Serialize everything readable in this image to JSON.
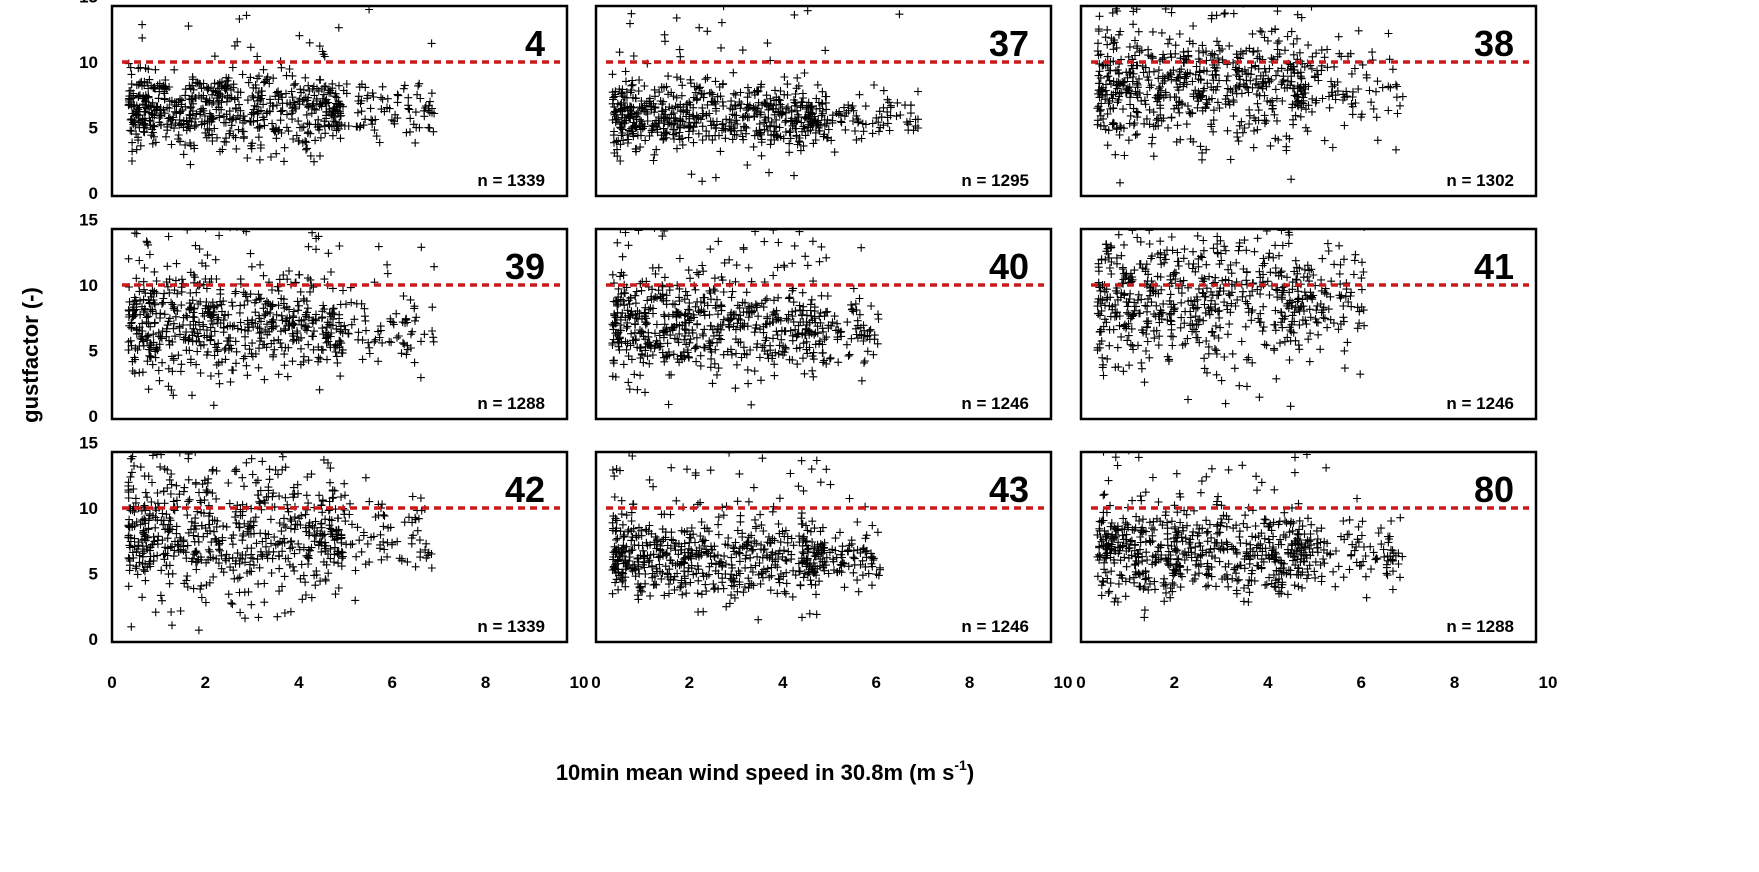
{
  "chart_data": {
    "type": "scatter",
    "layout": "3x3 small multiples",
    "xlabel_prefix": "10min mean wind speed in 30.8m (m s",
    "xlabel_sup": "-1",
    "xlabel_suffix": ")",
    "ylabel": "gustfactor (-)",
    "xlim": [
      0,
      10
    ],
    "ylim": [
      0,
      15
    ],
    "xticks": [
      0,
      2,
      4,
      6,
      8,
      10
    ],
    "yticks": [
      0,
      5,
      10,
      15
    ],
    "reference_line": {
      "y": 10,
      "color": "#cc1a1a",
      "style": "dashed"
    },
    "marker": "+",
    "marker_color": "#000000",
    "panels": [
      {
        "id": "4",
        "n_label": "n = 1339",
        "n": 1339,
        "x_max": 6.9,
        "y_center": 6.3,
        "y_spread": 1.5,
        "upper_fraction": 0.05
      },
      {
        "id": "37",
        "n_label": "n = 1295",
        "n": 1295,
        "x_max": 6.9,
        "y_center": 5.8,
        "y_spread": 1.4,
        "upper_fraction": 0.04
      },
      {
        "id": "38",
        "n_label": "n = 1302",
        "n": 1302,
        "x_max": 6.9,
        "y_center": 8.0,
        "y_spread": 2.3,
        "upper_fraction": 0.12
      },
      {
        "id": "39",
        "n_label": "n = 1288",
        "n": 1288,
        "x_max": 6.9,
        "y_center": 7.0,
        "y_spread": 2.0,
        "upper_fraction": 0.08
      },
      {
        "id": "40",
        "n_label": "n = 1246",
        "n": 1246,
        "x_max": 6.1,
        "y_center": 6.8,
        "y_spread": 2.0,
        "upper_fraction": 0.08
      },
      {
        "id": "41",
        "n_label": "n = 1246",
        "n": 1246,
        "x_max": 6.1,
        "y_center": 8.5,
        "y_spread": 2.6,
        "upper_fraction": 0.14
      },
      {
        "id": "42",
        "n_label": "n = 1339",
        "n": 1339,
        "x_max": 6.9,
        "y_center": 7.8,
        "y_spread": 2.4,
        "upper_fraction": 0.12
      },
      {
        "id": "43",
        "n_label": "n = 1246",
        "n": 1246,
        "x_max": 6.1,
        "y_center": 6.2,
        "y_spread": 1.6,
        "upper_fraction": 0.05
      },
      {
        "id": "80",
        "n_label": "n = 1288",
        "n": 1288,
        "x_max": 6.9,
        "y_center": 6.6,
        "y_spread": 1.7,
        "upper_fraction": 0.06
      }
    ]
  }
}
